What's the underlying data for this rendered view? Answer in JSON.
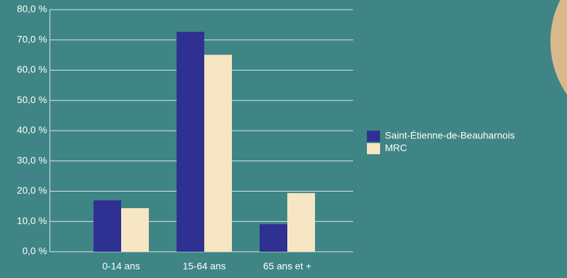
{
  "chart_data": {
    "type": "bar",
    "categories": [
      "0-14 ans",
      "15-64 ans",
      "65 ans et +"
    ],
    "series": [
      {
        "name": "Saint-Étienne-de-Beauharnois",
        "color": "#2e3192",
        "values": [
          17.0,
          72.7,
          9.1
        ]
      },
      {
        "name": "MRC",
        "color": "#f6e6c3",
        "values": [
          14.4,
          65.1,
          19.4
        ]
      }
    ],
    "ylim": [
      0,
      80
    ],
    "yticks": [
      {
        "value": 0,
        "label": "0,0 %"
      },
      {
        "value": 10,
        "label": "10,0 %"
      },
      {
        "value": 20,
        "label": "20,0 %"
      },
      {
        "value": 30,
        "label": "30,0 %"
      },
      {
        "value": 40,
        "label": "40,0 %"
      },
      {
        "value": 50,
        "label": "50,0 %"
      },
      {
        "value": 60,
        "label": "60,0 %"
      },
      {
        "value": 70,
        "label": "70,0 %"
      },
      {
        "value": 80,
        "label": "80,0 %"
      }
    ],
    "grid": true,
    "legend": "right"
  }
}
